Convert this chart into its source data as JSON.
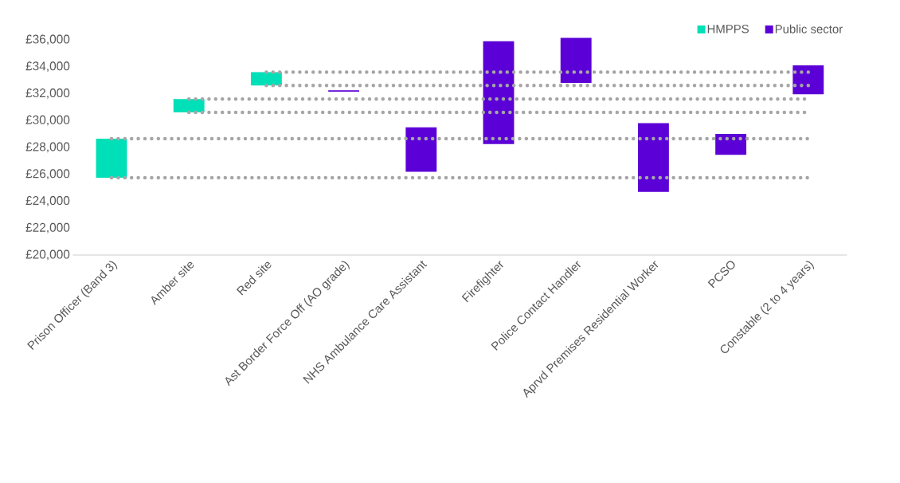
{
  "chart_data": {
    "type": "bar",
    "legend": "top right",
    "categories": [
      "Prison Officer (Band 3)",
      "Amber site",
      "Red site",
      "Ast Border Force Off (AO grade)",
      "NHS Ambulance Care Assistant",
      "Firefighter",
      "Police Contact Handler",
      "Aprvd Premises Residential Worker",
      "PCSO",
      "Constable (2 to 4 years)"
    ],
    "ylim": [
      20000,
      36000
    ],
    "yticks": [
      {
        "value": 20000,
        "label": "£20,000"
      },
      {
        "value": 22000,
        "label": "£22,000"
      },
      {
        "value": 24000,
        "label": "£24,000"
      },
      {
        "value": 26000,
        "label": "£26,000"
      },
      {
        "value": 28000,
        "label": "£28,000"
      },
      {
        "value": 30000,
        "label": "£30,000"
      },
      {
        "value": 32000,
        "label": "£32,000"
      },
      {
        "value": 34000,
        "label": "£34,000"
      },
      {
        "value": 36000,
        "label": "£36,000"
      }
    ],
    "series": [
      {
        "name": "HMPPS",
        "color": "#00e0b8",
        "values": [
          2900,
          1000,
          1000,
          null,
          null,
          null,
          null,
          null,
          null,
          null
        ],
        "base": [
          25750,
          30600,
          32600,
          null,
          null,
          null,
          null,
          null,
          null,
          null
        ]
      },
      {
        "name": "Public sector",
        "color": "#5b00d6",
        "values": [
          null,
          null,
          null,
          100,
          3300,
          7650,
          3350,
          5100,
          1550,
          2150
        ],
        "base": [
          null,
          null,
          null,
          32150,
          26200,
          28250,
          32800,
          24700,
          27450,
          31950
        ]
      },
      {
        "type": "line",
        "color": "#a6a6a6",
        "line_style": "dotted",
        "marker": "none",
        "values": [
          25750,
          25750,
          25750,
          25750,
          25750,
          25750,
          25750,
          25750,
          25750,
          25750
        ]
      },
      {
        "type": "line",
        "color": "#a6a6a6",
        "line_style": "dotted",
        "marker": "none",
        "values": [
          28650,
          28650,
          28650,
          28650,
          28650,
          28650,
          28650,
          28650,
          28650,
          28650
        ]
      },
      {
        "type": "line",
        "color": "#a6a6a6",
        "line_style": "dotted",
        "marker": "none",
        "values": [
          null,
          30600,
          30600,
          30600,
          30600,
          30600,
          30600,
          30600,
          30600,
          30600
        ]
      },
      {
        "type": "line",
        "color": "#a6a6a6",
        "line_style": "dotted",
        "marker": "none",
        "values": [
          null,
          31600,
          31600,
          31600,
          31600,
          31600,
          31600,
          31600,
          31600,
          31600
        ]
      },
      {
        "type": "line",
        "color": "#a6a6a6",
        "line_style": "dotted",
        "marker": "none",
        "values": [
          null,
          null,
          32600,
          32600,
          32600,
          32600,
          32600,
          32600,
          32600,
          32600
        ]
      },
      {
        "type": "line",
        "color": "#a6a6a6",
        "line_style": "dotted",
        "marker": "none",
        "values": [
          null,
          null,
          33600,
          33600,
          33600,
          33600,
          33600,
          33600,
          33600,
          33600
        ]
      }
    ]
  }
}
